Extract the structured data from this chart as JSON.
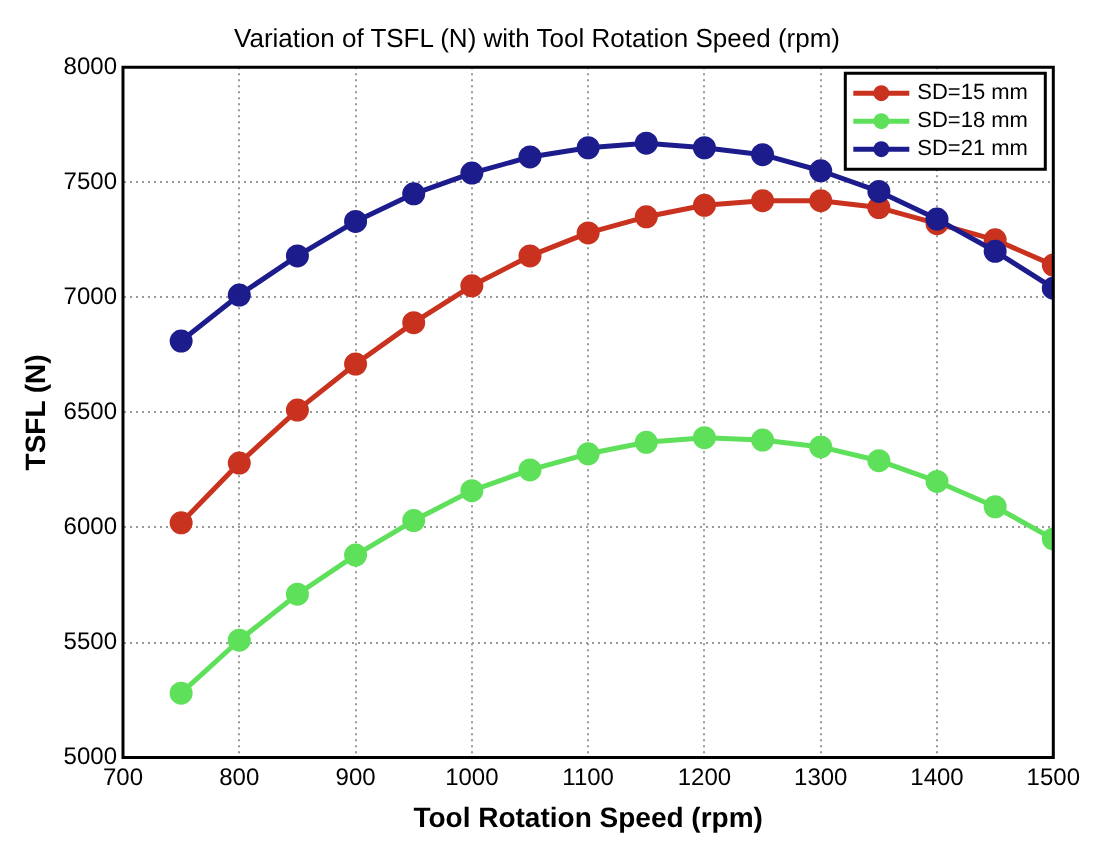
{
  "chart_data": {
    "type": "line",
    "title": "Variation of TSFL (N) with Tool Rotation Speed (rpm)",
    "xlabel": "Tool Rotation Speed (rpm)",
    "ylabel": "TSFL (N)",
    "x": [
      750,
      800,
      850,
      900,
      950,
      1000,
      1050,
      1100,
      1150,
      1200,
      1250,
      1300,
      1350,
      1400,
      1450,
      1500
    ],
    "series": [
      {
        "name": "SD=15 mm",
        "color": "#c8321e",
        "values": [
          6020,
          6280,
          6510,
          6710,
          6890,
          7050,
          7180,
          7280,
          7350,
          7400,
          7420,
          7420,
          7390,
          7320,
          7250,
          7140
        ]
      },
      {
        "name": "SD=18 mm",
        "color": "#5fe05a",
        "values": [
          5280,
          5510,
          5710,
          5880,
          6030,
          6160,
          6250,
          6320,
          6370,
          6390,
          6380,
          6350,
          6290,
          6200,
          6090,
          5950
        ]
      },
      {
        "name": "SD=21 mm",
        "color": "#1c1c8c",
        "values": [
          6810,
          7010,
          7180,
          7330,
          7450,
          7540,
          7610,
          7650,
          7670,
          7650,
          7620,
          7550,
          7460,
          7340,
          7200,
          7040
        ]
      }
    ],
    "xlim": [
      700,
      1500
    ],
    "xticks": [
      700,
      800,
      900,
      1000,
      1100,
      1200,
      1300,
      1400,
      1500
    ],
    "ylim": [
      5000,
      8000
    ],
    "yticks": [
      5000,
      5500,
      6000,
      6500,
      7000,
      7500,
      8000
    ],
    "grid": true,
    "legend": "top right",
    "marker": "circle",
    "line_style": "solid"
  }
}
